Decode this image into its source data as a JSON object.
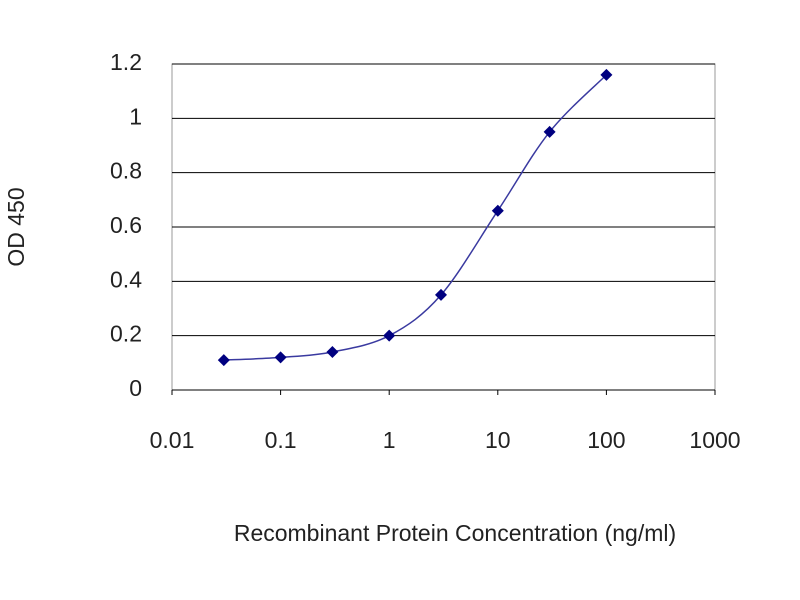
{
  "chart_data": {
    "type": "line",
    "x_label": "Recombinant Protein Concentration (ng/ml)",
    "y_label": "OD 450",
    "x": [
      0.03,
      0.1,
      0.3,
      1,
      3,
      10,
      30,
      100
    ],
    "series": [
      {
        "color": "#000080",
        "values": [
          0.11,
          0.12,
          0.14,
          0.2,
          0.35,
          0.66,
          0.95,
          1.16
        ]
      }
    ],
    "xlim": [
      0.01,
      1000
    ],
    "xticks": [
      0.01,
      0.1,
      1,
      10,
      100,
      1000
    ],
    "x_log": true,
    "ylim": [
      0,
      1.2
    ],
    "yticks": [
      0,
      0.2,
      0.4,
      0.6,
      0.8,
      1,
      1.2
    ],
    "grid": true
  }
}
